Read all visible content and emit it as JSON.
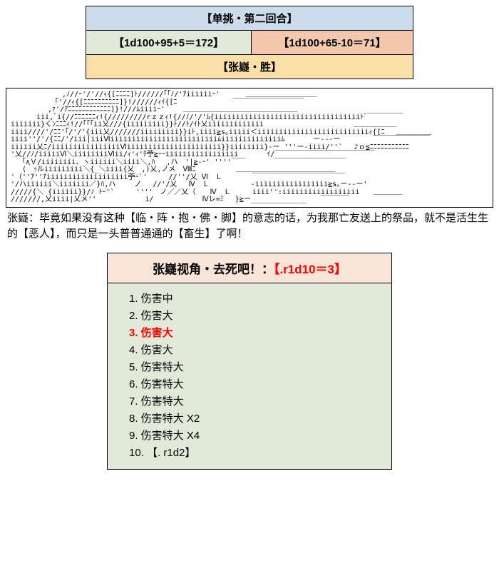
{
  "top": {
    "title": "【单挑・第二回合】",
    "left": "【1d100+95+5＝172】",
    "right": "【1d100+65-10＝71】",
    "winner": "【张嶷・胜】"
  },
  "ascii": "　　　　　 　 ,ﾉ//ｰ'/'//ｨ{[ﾆﾆﾆﾆ]ﾄ//////｢｢ﾉ/'ｱiiiiiiｰ'　　　 ＿＿＿＿＿＿＿＿＿＿\n　　　　 　 ｢'//ｨ{[ﾆﾆﾆﾆﾆﾆﾆﾆﾆﾆ]}!//////ｨｲ{[ﾆ　　　　 　 　 ￣￣￣￣￣￣￣￣￣￣\n　　　 　 ,ｧ'/ｱﾆﾆﾆﾆﾆﾆﾆﾆﾆﾆﾆﾆ]}!///ﾑiiiiｰ'　　 ＿＿＿＿＿＿＿＿＿＿＿＿＿＿＿＿\n　　　 iii,ﾞi{//ﾆﾆﾆﾆﾆﾆｨ!{/////////rｚｚｨ!{//ﾉ/'/'ﾑ{iiiiiiiiiiiiiiiiiiiiiiiiiiiiiiiiiiﾄﾞ￣￣￣￣￣\niiiiiii}くﾝﾆﾆﾆｨ!//｢｢｢ii乂///{iiiiiiiii}}ﾄ//ﾄ/ｲﾄ乂iiiiiiiiiiiii　　　　 　 　 　 　 　 ＿＿＿＿＿＿\niiii////'/ﾆﾆ'｢/'/'{iii乂///////iiiiiiiii}}iﾄ,iiii≧s｡iiiii＜iiiiiiiiiiiiiiiiiiiiiiiiiiｨ{[ﾆ　 ＿＿＿＿＿\niiii''/'/{ﾆﾆ/'/iii|iiiⅥiiiiiiiiiiiiiiiiiiiiiiiiiﾑiiiiiiiiiiiiiiﾑ　　　　ー---ー　　　　 ￣￣￣￣￣￣￣￣\niiiiii乂ﾆ/iiiiiiiiiiiiiiiiⅥiiiiiiiiiiiiiiiiiiiiii}}iiiiiiii}-ー '''ー-iiii/''` 　♪ｏ≦ﾆﾆﾆﾆﾆﾆﾆﾆﾆﾆﾆ\n'乂//ﾉ/iiiiiⅥ＼iiiiiiiiⅥii/ｨ'ｨ'ﾁ苧≧ｰｰiiiiiiiiiiiiiiiii　　　　ｲ/￣￣￣￣￣￣￣￣￣￣￣￣￣￣\n　 ｢∧Ｖ/iiiiiiii、ヽiiiiii＼iiii＼,ﾊ　 ,ハ　'|≧-ｰ' ''''￣￣　　　　￣￣￣￣￣￣￣￣￣￣\n　 (｀ｯルiiiiiiiii＼{_＼iiii{乂　,)乂,ノメ　Ⅷﾆ　　　　　 ＿＿＿＿＿＿＿＿＿＿＿＿＿＿\n'（''ｱ''ｱiiiiiiiiiiiiiiiiiii苧ｰ`'　　　//''/乂 Ⅵ　Ｌ　　 　 ￣￣￣￣￣￣￣￣￣￣￣￣￣\n'/ハiiiiii＼iiiiiii／}ﾊ,ハ 　　ノ　 //'/乂　 Ⅳ　Ｌ　　 　 　 -iiiiiiiiiiiiiiiii≧s｡ー--ー'\n/////{＼ {iiiiii}}/ﾉ ﾄｰ'`　　　''''　ノ／／乂（　　Ⅳ　Ｌ　　　iiii'':iiiiiiiiiiiiiiiiii　　＿＿＿＿\n///////,乂iiii|乂メ''　　　 　 　 i/　　　 　 　 Ⅳレ=ﾐ　 }≧ー_____________　　￣￣￣￣",
  "dialog": "张嶷：毕竟如果没有这种【临・阵・抱・佛・脚】的意志的话，为我那亡友送上的祭品，就不是活生生的【恶人】，而只是一头普普通通的【畜生】了啊！",
  "result": {
    "head_plain": "张嶷视角・去死吧！：",
    "head_red": "【.r1d10＝3】",
    "selected_index": 3,
    "rows": [
      "1. 伤害中",
      "2. 伤害大",
      "3. 伤害大",
      "4. 伤害大",
      "5. 伤害特大",
      "6. 伤害特大",
      "7. 伤害特大",
      "8. 伤害特大 X2",
      "9. 伤害特大 X4",
      "10. 【. r1d2】"
    ]
  }
}
